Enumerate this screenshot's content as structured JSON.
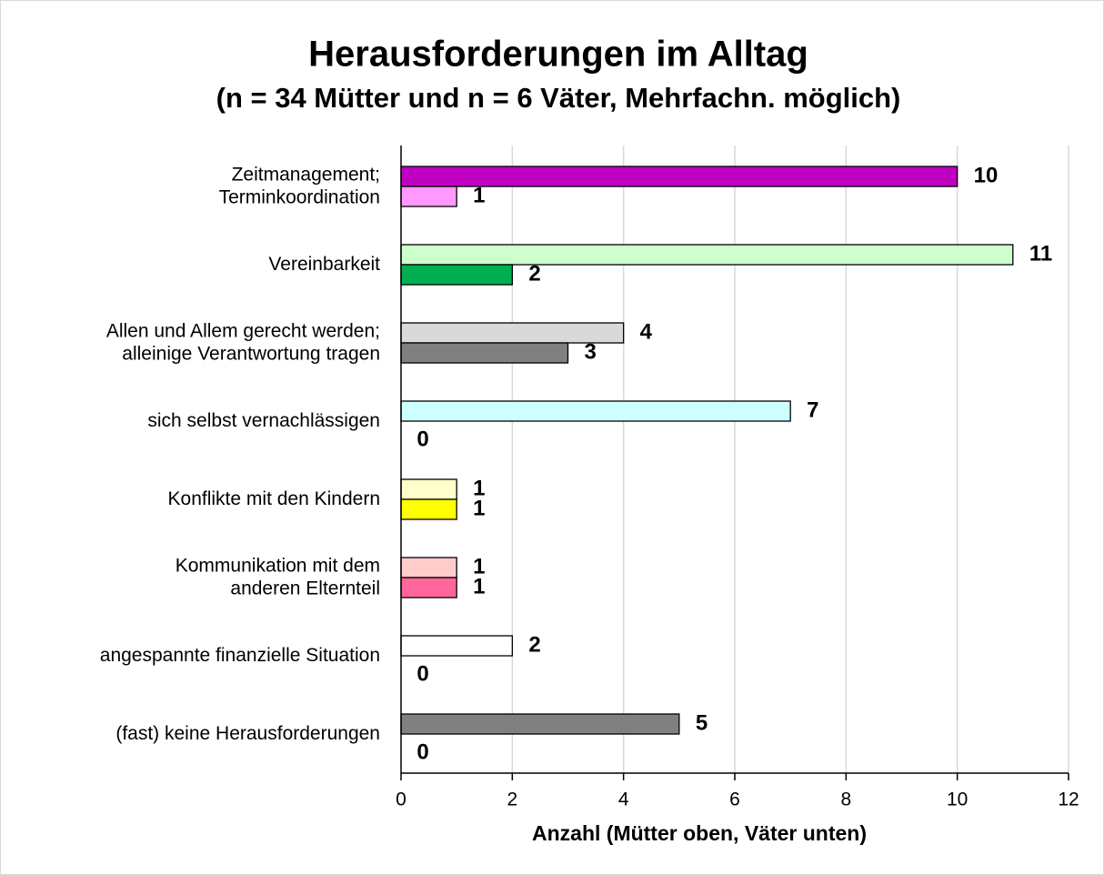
{
  "chart_data": {
    "type": "hbar",
    "title": "Herausforderungen im Alltag",
    "subtitle": "(n = 34 Mütter und n = 6 Väter, Mehrfachn. möglich)",
    "x_label": "Anzahl (Mütter oben, Väter unten)",
    "categories": [
      [
        "Zeitmanagement;",
        "Terminkoordination"
      ],
      [
        "Vereinbarkeit"
      ],
      [
        "Allen und Allem gerecht werden;",
        "alleinige Verantwortung tragen"
      ],
      [
        "sich selbst vernachlässigen"
      ],
      [
        "Konflikte mit den Kindern"
      ],
      [
        "Kommunikation mit dem",
        "anderen Elternteil"
      ],
      [
        "angespannte finanzielle Situation"
      ],
      [
        "(fast) keine Herausforderungen"
      ]
    ],
    "series": [
      {
        "values": [
          10,
          11,
          4,
          7,
          1,
          1,
          2,
          5
        ],
        "colors": [
          "#c000c0",
          "#ccffcc",
          "#d9d9d9",
          "#ccffff",
          "#ffffcc",
          "#ffcccc",
          "#ffffff",
          "#808080"
        ]
      },
      {
        "values": [
          1,
          2,
          3,
          0,
          1,
          1,
          0,
          0
        ],
        "colors": [
          "#ff99ff",
          "#00b050",
          "#808080",
          "#ccffff",
          "#ffff00",
          "#ff6699",
          "#ffffff",
          "#808080"
        ]
      }
    ],
    "xlim": [
      0,
      12
    ],
    "xticks": [
      0,
      2,
      4,
      6,
      8,
      10,
      12
    ],
    "grid": true
  }
}
